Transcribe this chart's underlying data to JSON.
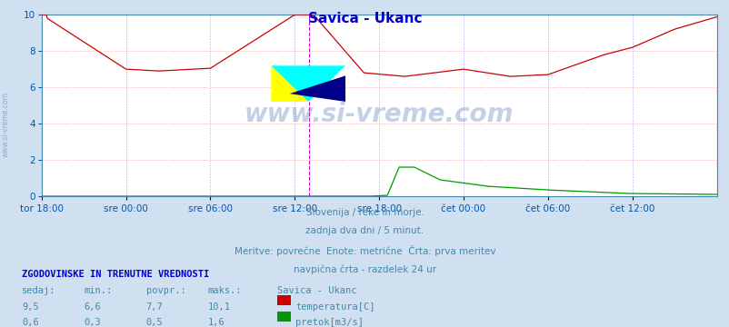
{
  "title": "Savica - Ukanc",
  "title_color": "#0000cc",
  "bg_color": "#d0e0f0",
  "plot_bg_color": "#ffffff",
  "grid_color_h": "#ffaaaa",
  "grid_color_v": "#aaaaff",
  "xlabel_color": "#0055aa",
  "text_color": "#4488aa",
  "ylim": [
    0,
    10
  ],
  "yticks": [
    0,
    2,
    4,
    6,
    8,
    10
  ],
  "x_tick_labels": [
    "tor 18:00",
    "sre 00:00",
    "sre 06:00",
    "sre 12:00",
    "sre 18:00",
    "čet 00:00",
    "čet 06:00",
    "čet 12:00"
  ],
  "x_tick_positions": [
    0,
    72,
    144,
    216,
    288,
    360,
    432,
    504
  ],
  "total_points": 577,
  "temp_color": "#cc0000",
  "flow_color": "#009900",
  "vline_color": "#cc00cc",
  "vline_x": 228,
  "right_vline_x": 576,
  "footer_line1": "Slovenija / reke in morje.",
  "footer_line2": "zadnja dva dni / 5 minut.",
  "footer_line3": "Meritve: povrečne  Enote: metrične  Črta: prva meritev",
  "footer_line4": "navpična črta - razdelek 24 ur",
  "legend_title": "ZGODOVINSKE IN TRENUTNE VREDNOSTI",
  "col_headers": [
    "sedaj:",
    "min.:",
    "povpr.:",
    "maks.:",
    "Savica - Ukanc"
  ],
  "row1_vals": [
    "9,5",
    "6,6",
    "7,7",
    "10,1"
  ],
  "row2_vals": [
    "0,6",
    "0,3",
    "0,5",
    "1,6"
  ],
  "series_labels": [
    "temperatura[C]",
    "pretok[m3/s]"
  ],
  "watermark": "www.si-vreme.com"
}
